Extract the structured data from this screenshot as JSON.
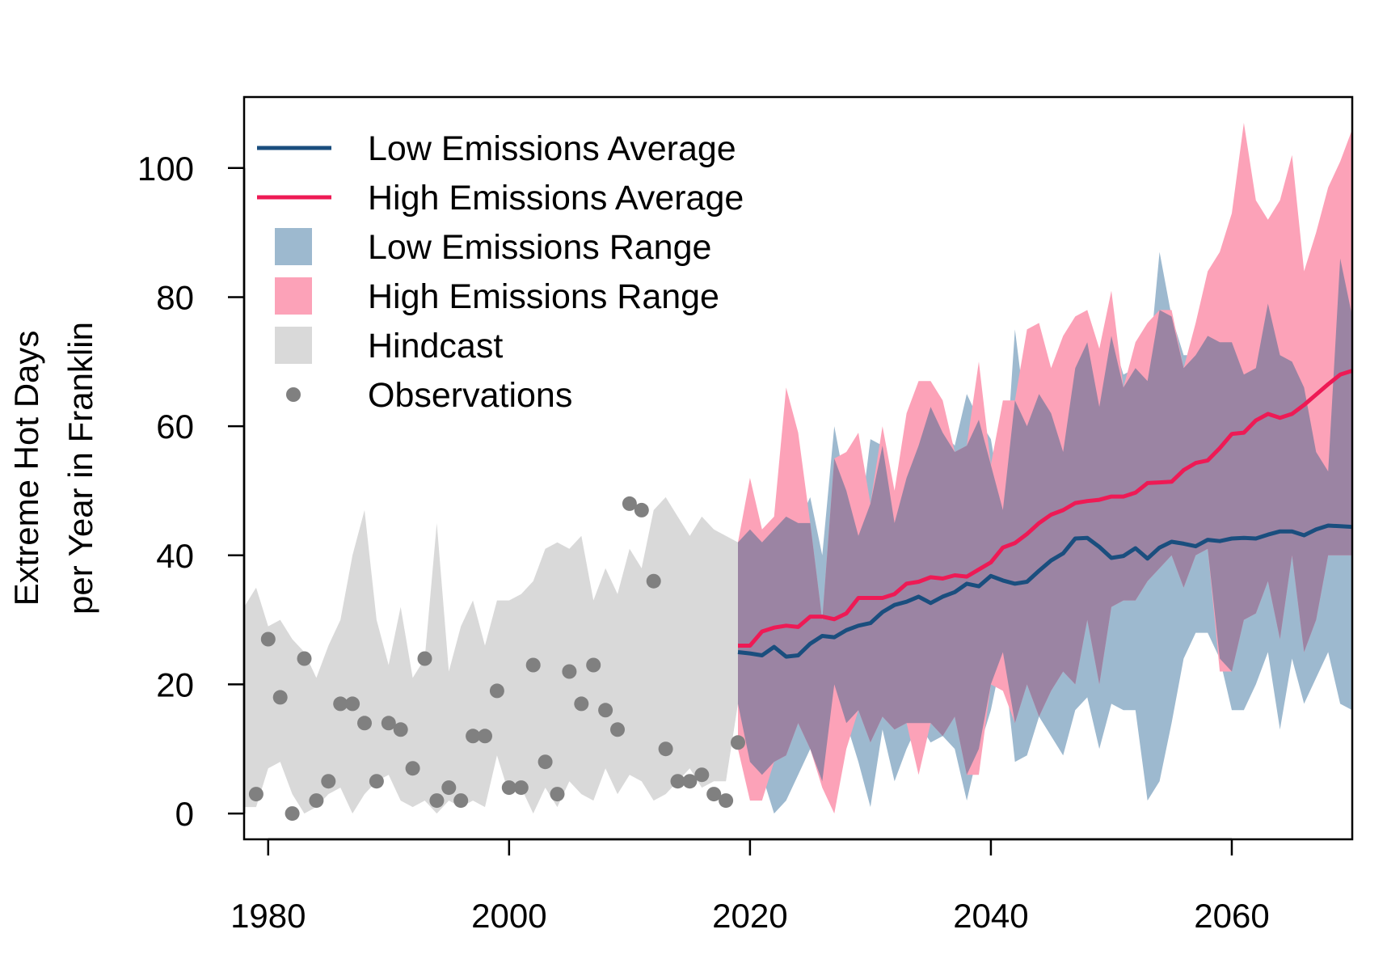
{
  "chart_data": {
    "type": "line",
    "title": "",
    "xlabel": "",
    "ylabel": [
      "Extreme Hot Days",
      "per Year in Franklin"
    ],
    "xlim": [
      1978,
      2070
    ],
    "ylim": [
      -4,
      111
    ],
    "x_ticks": [
      1980,
      2000,
      2020,
      2040,
      2060
    ],
    "y_ticks": [
      0,
      20,
      40,
      60,
      80,
      100
    ],
    "grid": false,
    "legend_position": "top-left",
    "colors": {
      "low_avg": "#1a4e7e",
      "high_avg": "#ee1a55",
      "low_range": "#9db9cf",
      "high_range": "#fca2b8",
      "overlap": "#9b84a3",
      "hindcast": "#d9d9d9",
      "observations": "#808080"
    },
    "legend": [
      {
        "label": "Low Emissions Average",
        "kind": "line",
        "color": "#1a4e7e"
      },
      {
        "label": "High Emissions Average",
        "kind": "line",
        "color": "#ee1a55"
      },
      {
        "label": "Low Emissions Range",
        "kind": "box",
        "color": "#9db9cf"
      },
      {
        "label": "High Emissions Range",
        "kind": "box",
        "color": "#fca2b8"
      },
      {
        "label": "Hindcast",
        "kind": "box",
        "color": "#d9d9d9"
      },
      {
        "label": "Observations",
        "kind": "point",
        "color": "#808080"
      }
    ],
    "hindcast": {
      "x": [
        1978,
        1979,
        1980,
        1981,
        1982,
        1983,
        1984,
        1985,
        1986,
        1987,
        1988,
        1989,
        1990,
        1991,
        1992,
        1993,
        1994,
        1995,
        1996,
        1997,
        1998,
        1999,
        2000,
        2001,
        2002,
        2003,
        2004,
        2005,
        2006,
        2007,
        2008,
        2009,
        2010,
        2011,
        2012,
        2013,
        2014,
        2015,
        2016,
        2017,
        2018,
        2019
      ],
      "low": [
        1,
        1,
        7,
        8,
        3,
        0,
        1,
        3,
        4,
        0,
        3,
        5,
        6,
        2,
        1,
        2,
        0,
        2,
        1,
        2,
        1,
        9,
        3,
        4,
        0,
        4,
        1,
        5,
        3,
        2,
        7,
        3,
        6,
        5,
        2,
        3,
        5,
        7,
        4,
        5,
        5,
        17
      ],
      "high": [
        32,
        35,
        29,
        30,
        27,
        25,
        21,
        26,
        30,
        40,
        47,
        30,
        23,
        32,
        21,
        24,
        45,
        22,
        29,
        33,
        26,
        33,
        33,
        34,
        36,
        41,
        42,
        41,
        43,
        33,
        38,
        34,
        41,
        38,
        47,
        49,
        46,
        43,
        46,
        44,
        43,
        42
      ]
    },
    "observations": {
      "x": [
        1979,
        1980,
        1981,
        1982,
        1983,
        1984,
        1985,
        1986,
        1987,
        1988,
        1989,
        1990,
        1991,
        1992,
        1993,
        1994,
        1995,
        1996,
        1997,
        1998,
        1999,
        2000,
        2001,
        2002,
        2003,
        2004,
        2005,
        2006,
        2007,
        2008,
        2009,
        2010,
        2011,
        2012,
        2013,
        2014,
        2015,
        2016,
        2017,
        2018,
        2019
      ],
      "y": [
        3,
        27,
        18,
        0,
        24,
        2,
        5,
        17,
        17,
        14,
        5,
        14,
        13,
        7,
        24,
        2,
        4,
        2,
        12,
        12,
        19,
        4,
        4,
        23,
        8,
        3,
        22,
        17,
        23,
        16,
        13,
        48,
        47,
        36,
        10,
        5,
        5,
        6,
        3,
        2,
        11
      ]
    },
    "series": [
      {
        "name": "Low Emissions Average",
        "x": [
          2019,
          2020,
          2021,
          2022,
          2023,
          2024,
          2025,
          2026,
          2027,
          2028,
          2029,
          2030,
          2031,
          2032,
          2033,
          2034,
          2035,
          2036,
          2037,
          2038,
          2039,
          2040,
          2041,
          2042,
          2043,
          2044,
          2045,
          2046,
          2047,
          2048,
          2049,
          2050,
          2051,
          2052,
          2053,
          2054,
          2055,
          2056,
          2057,
          2058,
          2059,
          2060,
          2061,
          2062,
          2063,
          2064,
          2065,
          2066,
          2067,
          2068,
          2069,
          2070
        ],
        "y": [
          25,
          24.8,
          24.5,
          25.8,
          24.3,
          24.5,
          26.3,
          27.5,
          27.3,
          28.4,
          29.1,
          29.5,
          31.2,
          32.3,
          32.8,
          33.6,
          32.6,
          33.6,
          34.3,
          35.6,
          35.2,
          36.8,
          36.1,
          35.6,
          35.9,
          37.6,
          39.2,
          40.3,
          42.6,
          42.7,
          41.3,
          39.6,
          39.9,
          41.1,
          39.5,
          41.2,
          42.1,
          41.8,
          41.4,
          42.4,
          42.2,
          42.6,
          42.7,
          42.6,
          43.2,
          43.7,
          43.7,
          43.1,
          44,
          44.6,
          44.5,
          44.4
        ]
      },
      {
        "name": "High Emissions Average",
        "x": [
          2019,
          2020,
          2021,
          2022,
          2023,
          2024,
          2025,
          2026,
          2027,
          2028,
          2029,
          2030,
          2031,
          2032,
          2033,
          2034,
          2035,
          2036,
          2037,
          2038,
          2039,
          2040,
          2041,
          2042,
          2043,
          2044,
          2045,
          2046,
          2047,
          2048,
          2049,
          2050,
          2051,
          2052,
          2053,
          2054,
          2055,
          2056,
          2057,
          2058,
          2059,
          2060,
          2061,
          2062,
          2063,
          2064,
          2065,
          2066,
          2067,
          2068,
          2069,
          2070
        ],
        "y": [
          26,
          26,
          28.2,
          28.8,
          29.1,
          28.9,
          30.5,
          30.5,
          30.1,
          31,
          33.4,
          33.4,
          33.4,
          34,
          35.6,
          35.9,
          36.6,
          36.4,
          36.9,
          36.7,
          37.8,
          38.9,
          41.2,
          41.9,
          43.3,
          45,
          46.3,
          47,
          48.1,
          48.4,
          48.6,
          49.1,
          49.1,
          49.7,
          51.2,
          51.3,
          51.4,
          53.2,
          54.3,
          54.7,
          56.6,
          58.8,
          59,
          60.9,
          61.9,
          61.3,
          61.9,
          63.3,
          64.9,
          66.5,
          68,
          68.6
        ]
      }
    ],
    "ranges": [
      {
        "name": "Low Emissions Range",
        "x": [
          2019,
          2020,
          2021,
          2022,
          2023,
          2024,
          2025,
          2026,
          2027,
          2028,
          2029,
          2030,
          2031,
          2032,
          2033,
          2034,
          2035,
          2036,
          2037,
          2038,
          2039,
          2040,
          2041,
          2042,
          2043,
          2044,
          2045,
          2046,
          2047,
          2048,
          2049,
          2050,
          2051,
          2052,
          2053,
          2054,
          2055,
          2056,
          2057,
          2058,
          2059,
          2060,
          2061,
          2062,
          2063,
          2064,
          2065,
          2066,
          2067,
          2068,
          2069,
          2070
        ],
        "low": [
          17,
          8,
          6,
          0,
          2,
          6,
          10,
          5,
          20,
          14,
          8,
          1,
          13,
          5,
          10,
          14,
          11,
          12,
          10,
          2,
          10,
          16,
          25,
          8,
          9,
          15,
          12,
          9,
          16,
          18,
          10,
          17,
          16,
          16,
          2,
          5,
          14,
          24,
          28,
          28,
          24,
          16,
          16,
          20,
          25,
          13,
          24,
          17,
          21,
          25,
          17,
          16
        ],
        "high": [
          42,
          44,
          42,
          44,
          46,
          45,
          49,
          40,
          60,
          50,
          43,
          58,
          57,
          45,
          52,
          57,
          63,
          59,
          57,
          65,
          61,
          58,
          47,
          75,
          60,
          65,
          62,
          56,
          69,
          73,
          63,
          74,
          68,
          69,
          67,
          87,
          77,
          71,
          71,
          74,
          73,
          73,
          68,
          69,
          79,
          71,
          70,
          66,
          56,
          53,
          86,
          77
        ]
      },
      {
        "name": "High Emissions Range",
        "x": [
          2019,
          2020,
          2021,
          2022,
          2023,
          2024,
          2025,
          2026,
          2027,
          2028,
          2029,
          2030,
          2031,
          2032,
          2033,
          2034,
          2035,
          2036,
          2037,
          2038,
          2039,
          2040,
          2041,
          2042,
          2043,
          2044,
          2045,
          2046,
          2047,
          2048,
          2049,
          2050,
          2051,
          2052,
          2053,
          2054,
          2055,
          2056,
          2057,
          2058,
          2059,
          2060,
          2061,
          2062,
          2063,
          2064,
          2065,
          2066,
          2067,
          2068,
          2069,
          2070
        ],
        "low": [
          10,
          2,
          2,
          8,
          9,
          14,
          10,
          4,
          0,
          10,
          16,
          11,
          15,
          13,
          14,
          6,
          14,
          12,
          15,
          6,
          6,
          20,
          19,
          14,
          20,
          15,
          19,
          22,
          20,
          30,
          20,
          32,
          33,
          33,
          36,
          38,
          40,
          35,
          40,
          41,
          22,
          22,
          30,
          31,
          36,
          27,
          40,
          25,
          30,
          40,
          40,
          40
        ],
        "high": [
          42,
          52,
          44,
          46,
          66,
          59,
          45,
          30,
          55,
          56,
          59,
          48,
          60,
          50,
          62,
          67,
          67,
          64,
          56,
          57,
          70,
          54,
          64,
          64,
          75,
          76,
          69,
          74,
          77,
          78,
          72,
          81,
          66,
          73,
          76,
          78,
          78,
          69,
          76,
          84,
          87,
          93,
          107,
          95,
          92,
          95,
          102,
          84,
          90,
          97,
          101,
          106
        ]
      }
    ]
  }
}
